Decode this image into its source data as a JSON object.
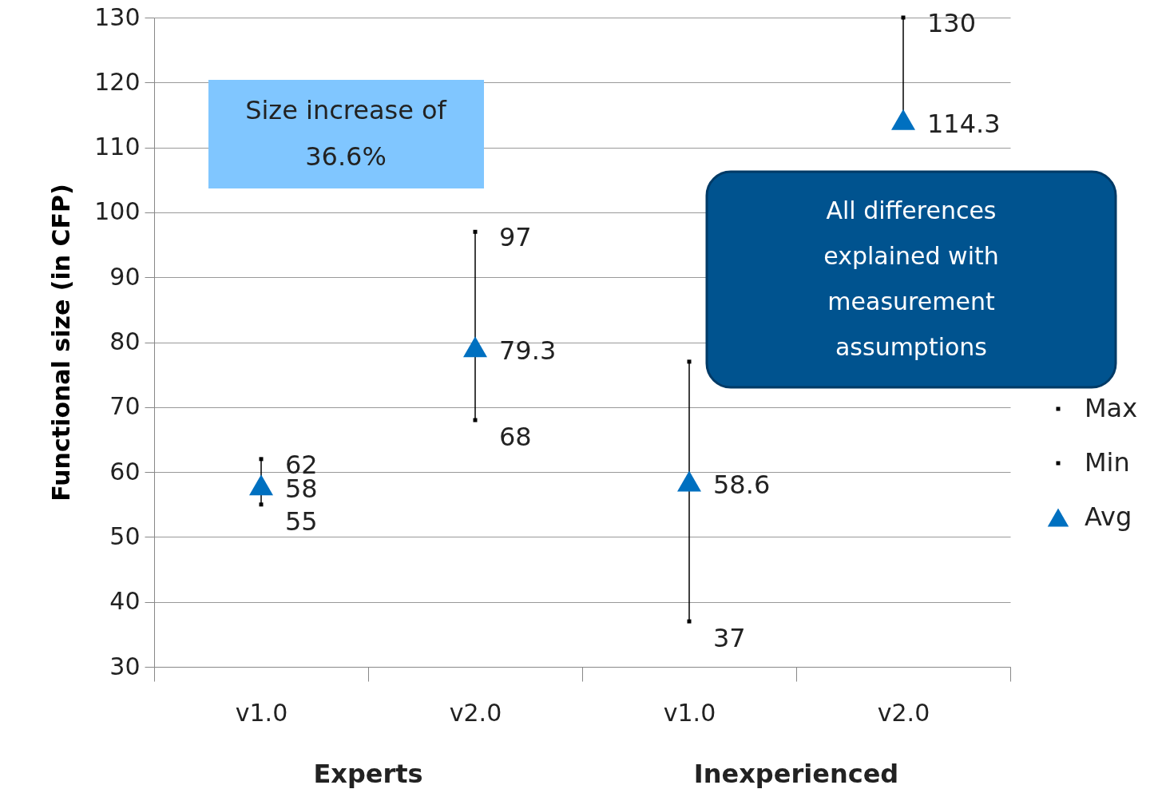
{
  "chart_data": {
    "type": "scatter",
    "categories": [
      "v1.0",
      "v2.0",
      "v1.0",
      "v2.0"
    ],
    "ylabel": "Functional size (in CFP)",
    "ylim": [
      30,
      130
    ],
    "yticks": [
      30,
      40,
      50,
      60,
      70,
      80,
      90,
      100,
      110,
      120,
      130
    ],
    "grid": "y",
    "legend": "right",
    "series": [
      {
        "name": "Max",
        "color": "#000000",
        "marker": "square",
        "values": [
          62,
          97,
          77,
          130
        ],
        "value_labels": [
          "62",
          "97",
          null,
          "130"
        ]
      },
      {
        "name": "Min",
        "color": "#000000",
        "marker": "square",
        "values": [
          55,
          68,
          37,
          null
        ],
        "value_labels": [
          "55",
          "68",
          "37",
          null
        ]
      },
      {
        "name": "Avg",
        "color": "#0070c0",
        "marker": "triangle",
        "values": [
          58,
          79.3,
          58.6,
          114.3
        ],
        "value_labels": [
          "58",
          "79.3",
          "58.6",
          "114.3"
        ]
      }
    ],
    "annotations": [
      "Size increase of 36.6%",
      "All differences explained with measurement assumptions",
      "Experts",
      "Inexperienced"
    ]
  }
}
